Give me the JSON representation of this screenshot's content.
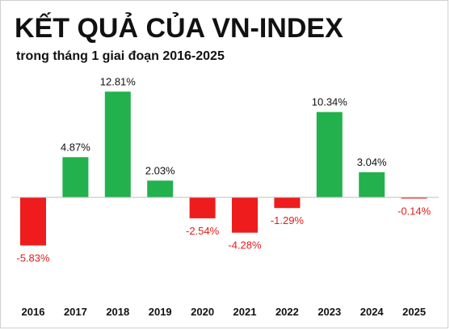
{
  "chart_data": {
    "type": "bar",
    "title": "KẾT QUẢ CỦA VN-INDEX",
    "subtitle": "trong tháng 1 giai đoạn 2016-2025",
    "categories": [
      "2016",
      "2017",
      "2018",
      "2019",
      "2020",
      "2021",
      "2022",
      "2023",
      "2024",
      "2025"
    ],
    "values": [
      -5.83,
      4.87,
      12.81,
      2.03,
      -2.54,
      -4.28,
      -1.29,
      10.34,
      3.04,
      -0.14
    ],
    "value_labels": [
      "-5.83%",
      "4.87%",
      "12.81%",
      "2.03%",
      "-2.54%",
      "-4.28%",
      "-1.29%",
      "10.34%",
      "3.04%",
      "-0.14%"
    ],
    "xlabel": "",
    "ylabel": "",
    "grid": false,
    "legend": "none",
    "colors": {
      "positive": "#22b14c",
      "negative": "#ee1c1c",
      "positive_label": "#111111",
      "negative_label": "#e51b1b",
      "axis": "#bfbfbf"
    }
  }
}
